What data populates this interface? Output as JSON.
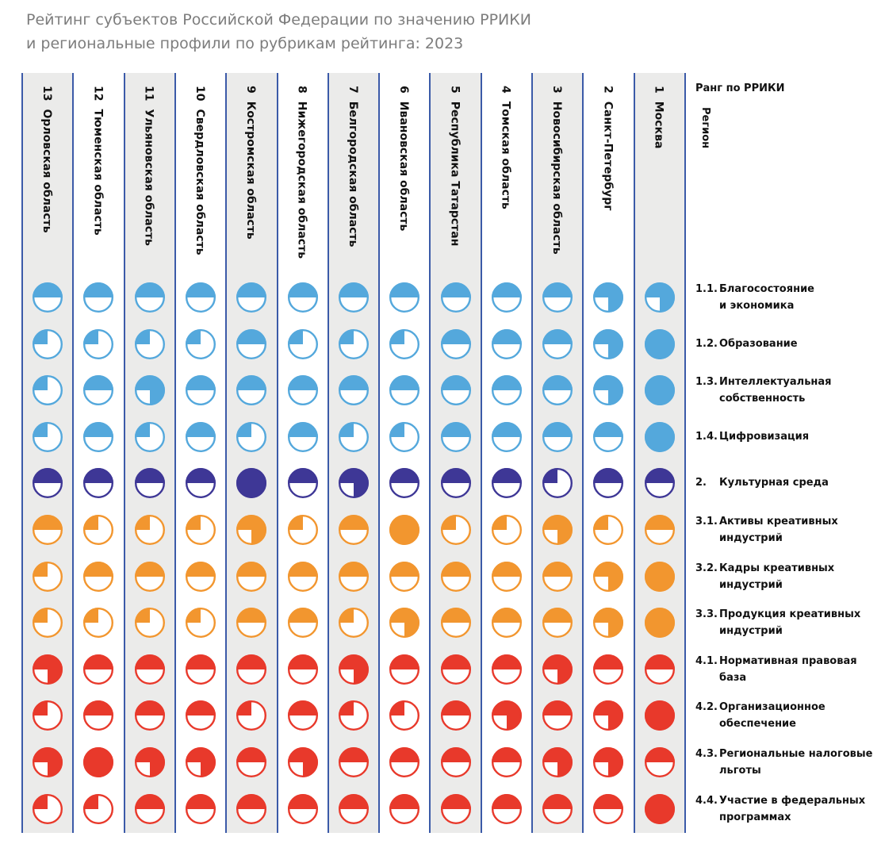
{
  "title": {
    "line1": "Рейтинг субъектов Российской Федерации по значению РРИКИ",
    "line2": "и региональные профили по рубрикам рейтинга: 2023"
  },
  "header": {
    "rank_label": "Ранг по РРИКИ",
    "region_label": "Регион"
  },
  "colors": {
    "blue": "#54a8dc",
    "indigo": "#3e3796",
    "orange": "#f2962f",
    "red": "#e8392b",
    "separator": "#3b5aa8",
    "column_shade": "#ebebea"
  },
  "chart_data": {
    "type": "table",
    "value_legend_note": "Each cell is a circle filled by fraction: 0.25, 0.5, 0.75 or 1.0",
    "columns": [
      {
        "rank": "13",
        "region": "Орловская область"
      },
      {
        "rank": "12",
        "region": "Тюменская область"
      },
      {
        "rank": "11",
        "region": "Ульяновская область"
      },
      {
        "rank": "10",
        "region": "Свердловская область"
      },
      {
        "rank": "9",
        "region": "Костромская область"
      },
      {
        "rank": "8",
        "region": "Нижегородская область"
      },
      {
        "rank": "7",
        "region": "Белгородская область"
      },
      {
        "rank": "6",
        "region": "Ивановская область"
      },
      {
        "rank": "5",
        "region": "Республика Татарстан"
      },
      {
        "rank": "4",
        "region": "Томская область"
      },
      {
        "rank": "3",
        "region": "Новосибирская область"
      },
      {
        "rank": "2",
        "region": "Санкт-Петербург"
      },
      {
        "rank": "1",
        "region": "Москва"
      }
    ],
    "rows": [
      {
        "num": "1.1.",
        "line1": "Благосостояние",
        "line2": "и экономика",
        "color": "blue",
        "values": [
          0.5,
          0.5,
          0.5,
          0.5,
          0.5,
          0.5,
          0.5,
          0.5,
          0.5,
          0.5,
          0.5,
          0.75,
          0.75
        ]
      },
      {
        "num": "1.2.",
        "line1": "Образование",
        "line2": "",
        "color": "blue",
        "values": [
          0.25,
          0.25,
          0.25,
          0.25,
          0.5,
          0.25,
          0.25,
          0.25,
          0.5,
          0.5,
          0.5,
          0.75,
          1
        ]
      },
      {
        "num": "1.3.",
        "line1": "Интеллектуальная",
        "line2": "собственность",
        "color": "blue",
        "values": [
          0.25,
          0.5,
          0.75,
          0.5,
          0.5,
          0.5,
          0.5,
          0.5,
          0.5,
          0.5,
          0.5,
          0.75,
          1
        ]
      },
      {
        "num": "1.4.",
        "line1": "Цифровизация",
        "line2": "",
        "color": "blue",
        "values": [
          0.25,
          0.5,
          0.25,
          0.5,
          0.25,
          0.5,
          0.25,
          0.25,
          0.5,
          0.5,
          0.5,
          0.5,
          1
        ]
      },
      {
        "num": "2.",
        "line1": "Культурная среда",
        "line2": "",
        "color": "indigo",
        "values": [
          0.5,
          0.5,
          0.5,
          0.5,
          1,
          0.5,
          0.75,
          0.5,
          0.5,
          0.5,
          0.25,
          0.5,
          0.5
        ]
      },
      {
        "num": "3.1.",
        "line1": "Активы креативных",
        "line2": "индустрий",
        "color": "orange",
        "values": [
          0.5,
          0.25,
          0.25,
          0.25,
          0.75,
          0.25,
          0.5,
          1,
          0.25,
          0.25,
          0.75,
          0.25,
          0.5
        ]
      },
      {
        "num": "3.2.",
        "line1": "Кадры креативных",
        "line2": "индустрий",
        "color": "orange",
        "values": [
          0.25,
          0.5,
          0.5,
          0.5,
          0.5,
          0.5,
          0.5,
          0.5,
          0.5,
          0.5,
          0.5,
          0.75,
          1
        ]
      },
      {
        "num": "3.3.",
        "line1": "Продукция креативных",
        "line2": "индустрий",
        "color": "orange",
        "values": [
          0.25,
          0.25,
          0.25,
          0.25,
          0.5,
          0.5,
          0.25,
          0.75,
          0.5,
          0.5,
          0.5,
          0.75,
          1
        ]
      },
      {
        "num": "4.1.",
        "line1": "Нормативная правовая",
        "line2": "база",
        "color": "red",
        "values": [
          0.75,
          0.5,
          0.5,
          0.5,
          0.5,
          0.5,
          0.75,
          0.5,
          0.5,
          0.5,
          0.75,
          0.5,
          0.5
        ]
      },
      {
        "num": "4.2.",
        "line1": "Организационное",
        "line2": "обеспечение",
        "color": "red",
        "values": [
          0.25,
          0.5,
          0.5,
          0.5,
          0.25,
          0.5,
          0.25,
          0.25,
          0.5,
          0.75,
          0.5,
          0.75,
          1
        ]
      },
      {
        "num": "4.3.",
        "line1": "Региональные налоговые",
        "line2": "льготы",
        "color": "red",
        "values": [
          0.75,
          1,
          0.75,
          0.75,
          0.5,
          0.75,
          0.5,
          0.5,
          0.5,
          0.5,
          0.75,
          0.75,
          0.5
        ]
      },
      {
        "num": "4.4.",
        "line1": "Участие в федеральных",
        "line2": "программах",
        "color": "red",
        "values": [
          0.25,
          0.25,
          0.5,
          0.5,
          0.5,
          0.5,
          0.5,
          0.5,
          0.5,
          0.5,
          0.5,
          0.5,
          1
        ]
      }
    ]
  }
}
